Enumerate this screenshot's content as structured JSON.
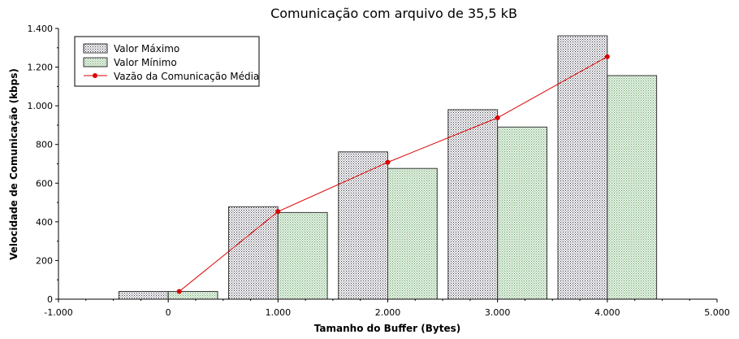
{
  "chart_data": {
    "type": "bar",
    "title": "Comunicação com arquivo de 35,5 kB",
    "xlabel": "Tamanho do Buffer (Bytes)",
    "ylabel": "Velocidade de Comunicação (kbps)",
    "xlim": [
      -1000,
      5000
    ],
    "ylim": [
      0,
      1400
    ],
    "x_ticks": [
      -1000,
      0,
      1000,
      2000,
      3000,
      4000,
      5000
    ],
    "x_tick_labels": [
      "-1.000",
      "0",
      "1.000",
      "2.000",
      "3.000",
      "4.000",
      "5.000"
    ],
    "y_ticks": [
      0,
      200,
      400,
      600,
      800,
      1000,
      1200,
      1400
    ],
    "y_tick_labels": [
      "0",
      "200",
      "400",
      "600",
      "800",
      "1.000",
      "1.200",
      "1.400"
    ],
    "x": [
      0,
      1000,
      2000,
      3000,
      4000
    ],
    "grid": false,
    "legend_position": "top-left",
    "series": [
      {
        "name": "Valor Máximo",
        "kind": "bar",
        "values": [
          40,
          478,
          762,
          980,
          1362
        ],
        "color": "#b4b4c8"
      },
      {
        "name": "Valor Mínimo",
        "kind": "bar",
        "values": [
          40,
          448,
          676,
          890,
          1156
        ],
        "color": "#b4d8b4"
      },
      {
        "name": "Vazão da Comunicação Média",
        "kind": "line",
        "x": [
          100,
          1000,
          2000,
          3000,
          4000
        ],
        "values": [
          40,
          453,
          708,
          938,
          1254
        ],
        "color": "#dd0000"
      }
    ]
  }
}
